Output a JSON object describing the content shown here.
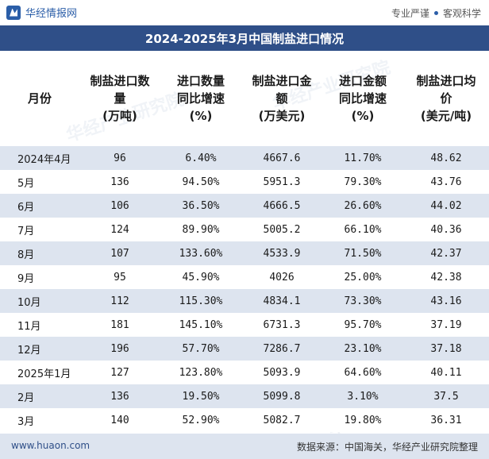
{
  "header": {
    "brand": "华经情报网",
    "slogan_left": "专业严谨",
    "slogan_right": "客观科学"
  },
  "title": "2024-2025年3月中国制盐进口情况",
  "columns": [
    [
      "月份"
    ],
    [
      "制盐进口数",
      "量",
      "(万吨)"
    ],
    [
      "进口数量",
      "同比增速",
      "(%)"
    ],
    [
      "制盐进口金",
      "额",
      "(万美元)"
    ],
    [
      "进口金额",
      "同比增速",
      "(%)"
    ],
    [
      "制盐进口均",
      "价",
      "(美元/吨)"
    ]
  ],
  "rows": [
    [
      "2024年4月",
      "96",
      "6.40%",
      "4667.6",
      "11.70%",
      "48.62"
    ],
    [
      "5月",
      "136",
      "94.50%",
      "5951.3",
      "79.30%",
      "43.76"
    ],
    [
      "6月",
      "106",
      "36.50%",
      "4666.5",
      "26.60%",
      "44.02"
    ],
    [
      "7月",
      "124",
      "89.90%",
      "5005.2",
      "66.10%",
      "40.36"
    ],
    [
      "8月",
      "107",
      "133.60%",
      "4533.9",
      "71.50%",
      "42.37"
    ],
    [
      "9月",
      "95",
      "45.90%",
      "4026",
      "25.00%",
      "42.38"
    ],
    [
      "10月",
      "112",
      "115.30%",
      "4834.1",
      "73.30%",
      "43.16"
    ],
    [
      "11月",
      "181",
      "145.10%",
      "6731.3",
      "95.70%",
      "37.19"
    ],
    [
      "12月",
      "196",
      "57.70%",
      "7286.7",
      "23.10%",
      "37.18"
    ],
    [
      "2025年1月",
      "127",
      "123.80%",
      "5093.9",
      "64.60%",
      "40.11"
    ],
    [
      "2月",
      "136",
      "19.50%",
      "5099.8",
      "3.10%",
      "37.5"
    ],
    [
      "3月",
      "140",
      "52.90%",
      "5082.7",
      "19.80%",
      "36.31"
    ]
  ],
  "footer": {
    "site": "www.huaon.com",
    "source": "数据来源：中国海关，华经产业研究院整理"
  },
  "watermark": "华经产业研究院"
}
